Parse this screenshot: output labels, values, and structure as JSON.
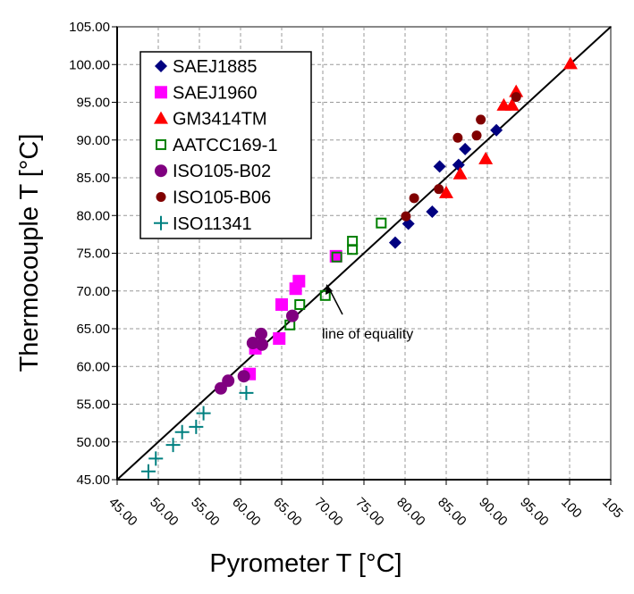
{
  "chart_data": {
    "type": "scatter",
    "xlabel": "Pyrometer  T [°C]",
    "ylabel": "Thermocouple  T [°C]",
    "xlim": [
      45,
      105
    ],
    "ylim": [
      45,
      105
    ],
    "grid": true,
    "legend_position": "top-left",
    "x_tick_labels": [
      "45.00",
      "50.00",
      "55.00",
      "60.00",
      "65.00",
      "70.00",
      "75.00",
      "80.00",
      "85.00",
      "90.00",
      "95.00",
      "100",
      "105"
    ],
    "y_tick_labels": [
      "45.00",
      "50.00",
      "55.00",
      "60.00",
      "65.00",
      "70.00",
      "75.00",
      "80.00",
      "85.00",
      "90.00",
      "95.00",
      "100.00",
      "105.00"
    ],
    "reference_line": {
      "label": "line of equality",
      "points": [
        [
          45,
          45
        ],
        [
          105,
          105
        ]
      ]
    },
    "series": [
      {
        "name": "SAEJ1885",
        "marker": "diamond",
        "color": "#000080",
        "points": [
          [
            78.8,
            76.4
          ],
          [
            80.4,
            78.9
          ],
          [
            83.3,
            80.5
          ],
          [
            84.2,
            86.5
          ],
          [
            86.5,
            86.7
          ],
          [
            87.3,
            88.8
          ],
          [
            91.1,
            91.3
          ]
        ]
      },
      {
        "name": "SAEJ1960",
        "marker": "square",
        "color": "#FF00FF",
        "points": [
          [
            61.1,
            59.0
          ],
          [
            61.8,
            62.4
          ],
          [
            64.7,
            63.7
          ],
          [
            65.0,
            68.2
          ],
          [
            66.7,
            70.3
          ],
          [
            67.1,
            71.3
          ],
          [
            71.6,
            74.6
          ]
        ]
      },
      {
        "name": "GM3414TM",
        "marker": "triangle",
        "color": "#FF0000",
        "points": [
          [
            85.0,
            83.0
          ],
          [
            86.7,
            85.5
          ],
          [
            89.8,
            87.5
          ],
          [
            92.0,
            94.6
          ],
          [
            93.0,
            94.6
          ],
          [
            93.5,
            96.4
          ],
          [
            100.1,
            100.1
          ]
        ]
      },
      {
        "name": "AATCC169-1",
        "marker": "hollow-square",
        "color": "#008000",
        "points": [
          [
            66.0,
            65.5
          ],
          [
            67.2,
            68.2
          ],
          [
            70.3,
            69.4
          ],
          [
            71.7,
            74.5
          ],
          [
            73.6,
            75.5
          ],
          [
            73.6,
            76.6
          ],
          [
            77.1,
            79.0
          ]
        ]
      },
      {
        "name": "ISO105-B02",
        "marker": "circle-large",
        "color": "#800080",
        "points": [
          [
            57.6,
            57.1
          ],
          [
            58.5,
            58.1
          ],
          [
            60.4,
            58.7
          ],
          [
            61.5,
            63.1
          ],
          [
            62.5,
            64.3
          ],
          [
            62.6,
            62.9
          ],
          [
            66.3,
            66.7
          ]
        ]
      },
      {
        "name": "ISO105-B06",
        "marker": "circle",
        "color": "#800000",
        "points": [
          [
            80.1,
            79.9
          ],
          [
            81.1,
            82.3
          ],
          [
            84.1,
            83.5
          ],
          [
            86.4,
            90.3
          ],
          [
            88.7,
            90.6
          ],
          [
            89.2,
            92.7
          ],
          [
            93.5,
            95.7
          ]
        ]
      },
      {
        "name": "ISO11341",
        "marker": "plus",
        "color": "#008080",
        "points": [
          [
            48.8,
            46.1
          ],
          [
            49.7,
            47.8
          ],
          [
            51.8,
            49.6
          ],
          [
            52.9,
            51.3
          ],
          [
            54.6,
            52.0
          ],
          [
            55.5,
            53.8
          ],
          [
            60.7,
            56.5
          ]
        ]
      }
    ]
  }
}
